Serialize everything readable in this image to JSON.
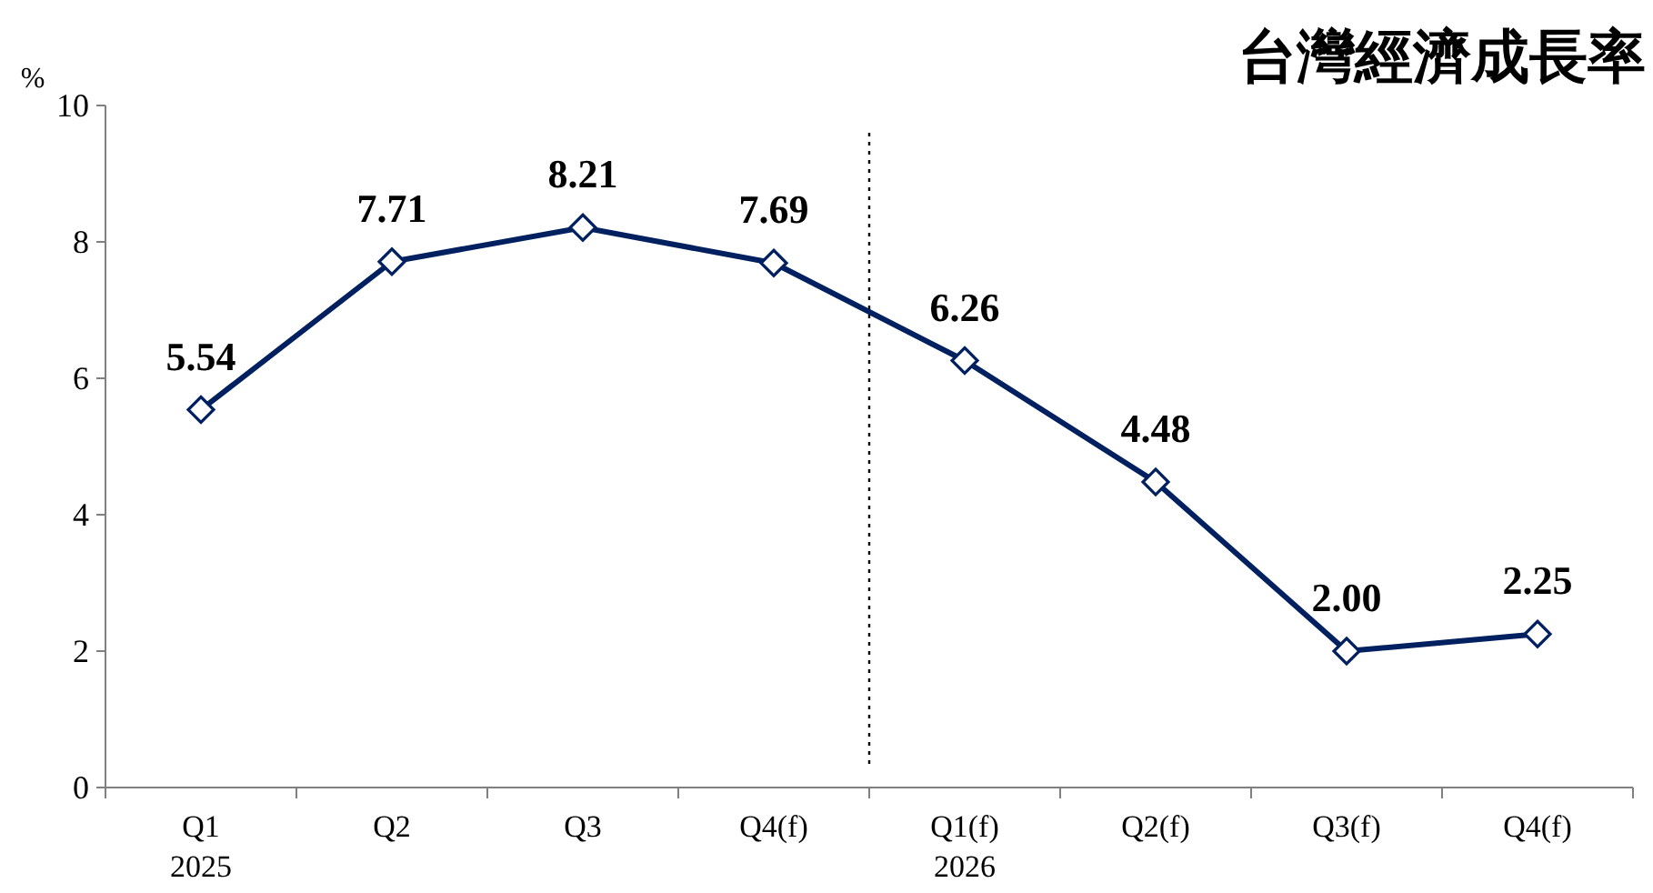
{
  "chart_data": {
    "type": "line",
    "title": "台灣經濟成長率",
    "ylabel": "%",
    "categories": [
      "Q1\n2025",
      "Q2",
      "Q3",
      "Q4(f)",
      "Q1(f)\n2026",
      "Q2(f)",
      "Q3(f)",
      "Q4(f)"
    ],
    "series": [
      {
        "color": "#002060",
        "values": [
          5.54,
          7.71,
          8.21,
          7.69,
          6.26,
          4.48,
          2.0,
          2.25
        ]
      }
    ],
    "value_labels": [
      "5.54",
      "7.71",
      "8.21",
      "7.69",
      "6.26",
      "4.48",
      "2.00",
      "2.25"
    ],
    "ylim": [
      0,
      10
    ],
    "yticks": [
      0,
      2,
      4,
      6,
      8,
      10
    ],
    "grid": false,
    "marker": "diamond",
    "line_style": "solid"
  }
}
